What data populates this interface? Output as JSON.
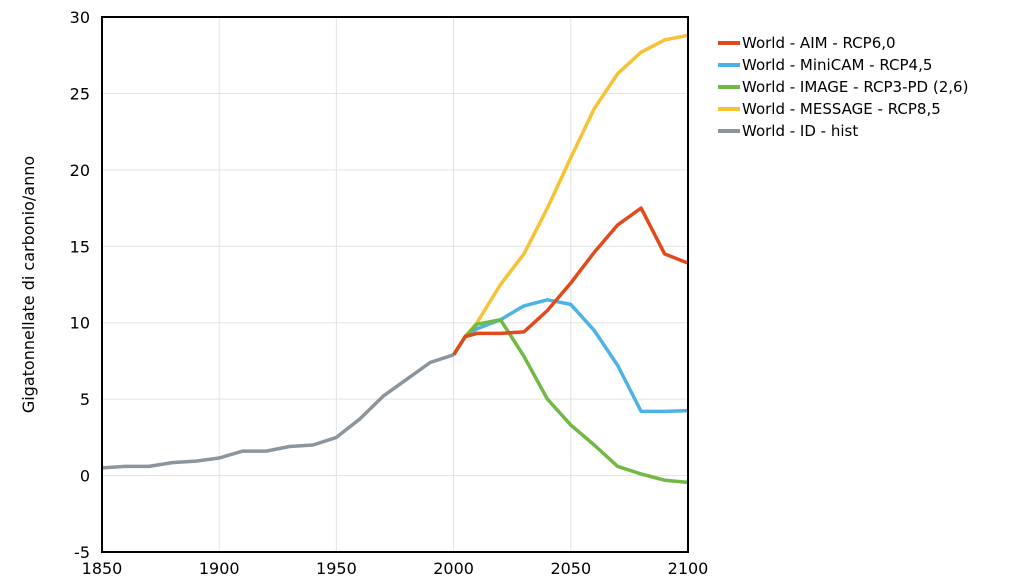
{
  "chart_data": {
    "type": "line",
    "title": "",
    "xlabel": "",
    "ylabel": "Gigatonnellate di carbonio/anno",
    "xlim": [
      1850,
      2100
    ],
    "ylim": [
      -5,
      30
    ],
    "x_ticks": [
      "1850",
      "1900",
      "1950",
      "2000",
      "2050",
      "2100"
    ],
    "y_ticks": [
      "30",
      "25",
      "20",
      "15",
      "10",
      "5",
      "0",
      "-5"
    ],
    "grid": true,
    "legend_position": "right",
    "series": [
      {
        "name": "World - AIM - RCP6,0",
        "color": "#e04a1c",
        "points": [
          [
            2000,
            7.9
          ],
          [
            2005,
            9.1
          ],
          [
            2010,
            9.3
          ],
          [
            2020,
            9.3
          ],
          [
            2030,
            9.4
          ],
          [
            2040,
            10.8
          ],
          [
            2050,
            12.6
          ],
          [
            2060,
            14.6
          ],
          [
            2070,
            16.4
          ],
          [
            2080,
            17.5
          ],
          [
            2090,
            14.5
          ],
          [
            2100,
            13.9
          ]
        ]
      },
      {
        "name": "World - MiniCAM - RCP4,5",
        "color": "#4db3e6",
        "points": [
          [
            2000,
            7.9
          ],
          [
            2005,
            9.1
          ],
          [
            2010,
            9.6
          ],
          [
            2020,
            10.2
          ],
          [
            2030,
            11.1
          ],
          [
            2040,
            11.5
          ],
          [
            2050,
            11.2
          ],
          [
            2060,
            9.5
          ],
          [
            2070,
            7.2
          ],
          [
            2080,
            4.2
          ],
          [
            2090,
            4.2
          ],
          [
            2100,
            4.25
          ]
        ]
      },
      {
        "name": "World - IMAGE - RCP3-PD (2,6)",
        "color": "#72b844",
        "points": [
          [
            2000,
            7.9
          ],
          [
            2005,
            9.1
          ],
          [
            2010,
            9.9
          ],
          [
            2020,
            10.2
          ],
          [
            2030,
            7.8
          ],
          [
            2040,
            5.0
          ],
          [
            2050,
            3.3
          ],
          [
            2060,
            2.0
          ],
          [
            2070,
            0.6
          ],
          [
            2080,
            0.1
          ],
          [
            2090,
            -0.3
          ],
          [
            2100,
            -0.45
          ]
        ]
      },
      {
        "name": "World - MESSAGE - RCP8,5",
        "color": "#f7c234",
        "points": [
          [
            2000,
            7.9
          ],
          [
            2005,
            9.1
          ],
          [
            2010,
            10.0
          ],
          [
            2020,
            12.5
          ],
          [
            2030,
            14.5
          ],
          [
            2040,
            17.5
          ],
          [
            2050,
            20.8
          ],
          [
            2060,
            24.0
          ],
          [
            2070,
            26.3
          ],
          [
            2080,
            27.7
          ],
          [
            2090,
            28.5
          ],
          [
            2100,
            28.8
          ]
        ]
      },
      {
        "name": "World - ID - hist",
        "color": "#8c949c",
        "points": [
          [
            1850,
            0.5
          ],
          [
            1860,
            0.6
          ],
          [
            1870,
            0.6
          ],
          [
            1880,
            0.85
          ],
          [
            1890,
            0.95
          ],
          [
            1900,
            1.15
          ],
          [
            1910,
            1.6
          ],
          [
            1920,
            1.6
          ],
          [
            1930,
            1.9
          ],
          [
            1940,
            2.0
          ],
          [
            1950,
            2.5
          ],
          [
            1960,
            3.7
          ],
          [
            1970,
            5.2
          ],
          [
            1980,
            6.3
          ],
          [
            1990,
            7.4
          ],
          [
            2000,
            7.9
          ]
        ]
      }
    ]
  }
}
